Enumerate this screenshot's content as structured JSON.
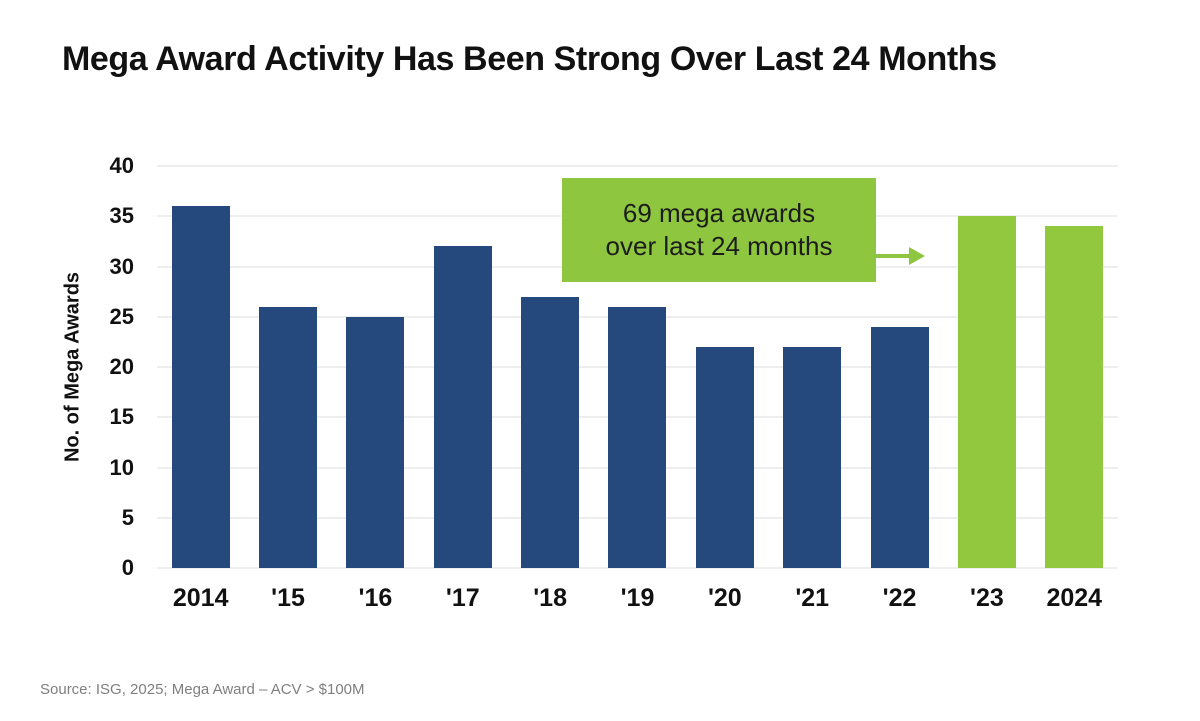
{
  "title": "Mega Award Activity Has Been Strong Over Last 24 Months",
  "annotation": {
    "line1": "69 mega awards",
    "line2": "over last 24 months",
    "arrow": "right-arrow"
  },
  "source": "Source: ISG, 2025; Mega Award – ACV > $100M",
  "colors": {
    "bar_blue": "#25497d",
    "bar_green": "#92c83e",
    "annotation_bg": "#8ec63f",
    "grid": "#dcdcdc",
    "title_text": "#111111",
    "source_text": "#7f7f7f"
  },
  "chart_data": {
    "type": "bar",
    "categories": [
      "2014",
      "'15",
      "'16",
      "'17",
      "'18",
      "'19",
      "'20",
      "'21",
      "'22",
      "'23",
      "2024"
    ],
    "values": [
      36,
      26,
      25,
      32,
      27,
      26,
      22,
      22,
      24,
      35,
      34
    ],
    "bar_colors": [
      "blue",
      "blue",
      "blue",
      "blue",
      "blue",
      "blue",
      "blue",
      "blue",
      "blue",
      "green",
      "green"
    ],
    "title": "Mega Award Activity Has Been Strong Over Last 24 Months",
    "xlabel": "",
    "ylabel": "No. of Mega Awards",
    "ylim": [
      0,
      40
    ],
    "yticks": [
      0,
      5,
      10,
      15,
      20,
      25,
      30,
      35,
      40
    ],
    "grid": "horizontal",
    "legend": "none",
    "annotation_text": "69 mega awards over last 24 months"
  }
}
